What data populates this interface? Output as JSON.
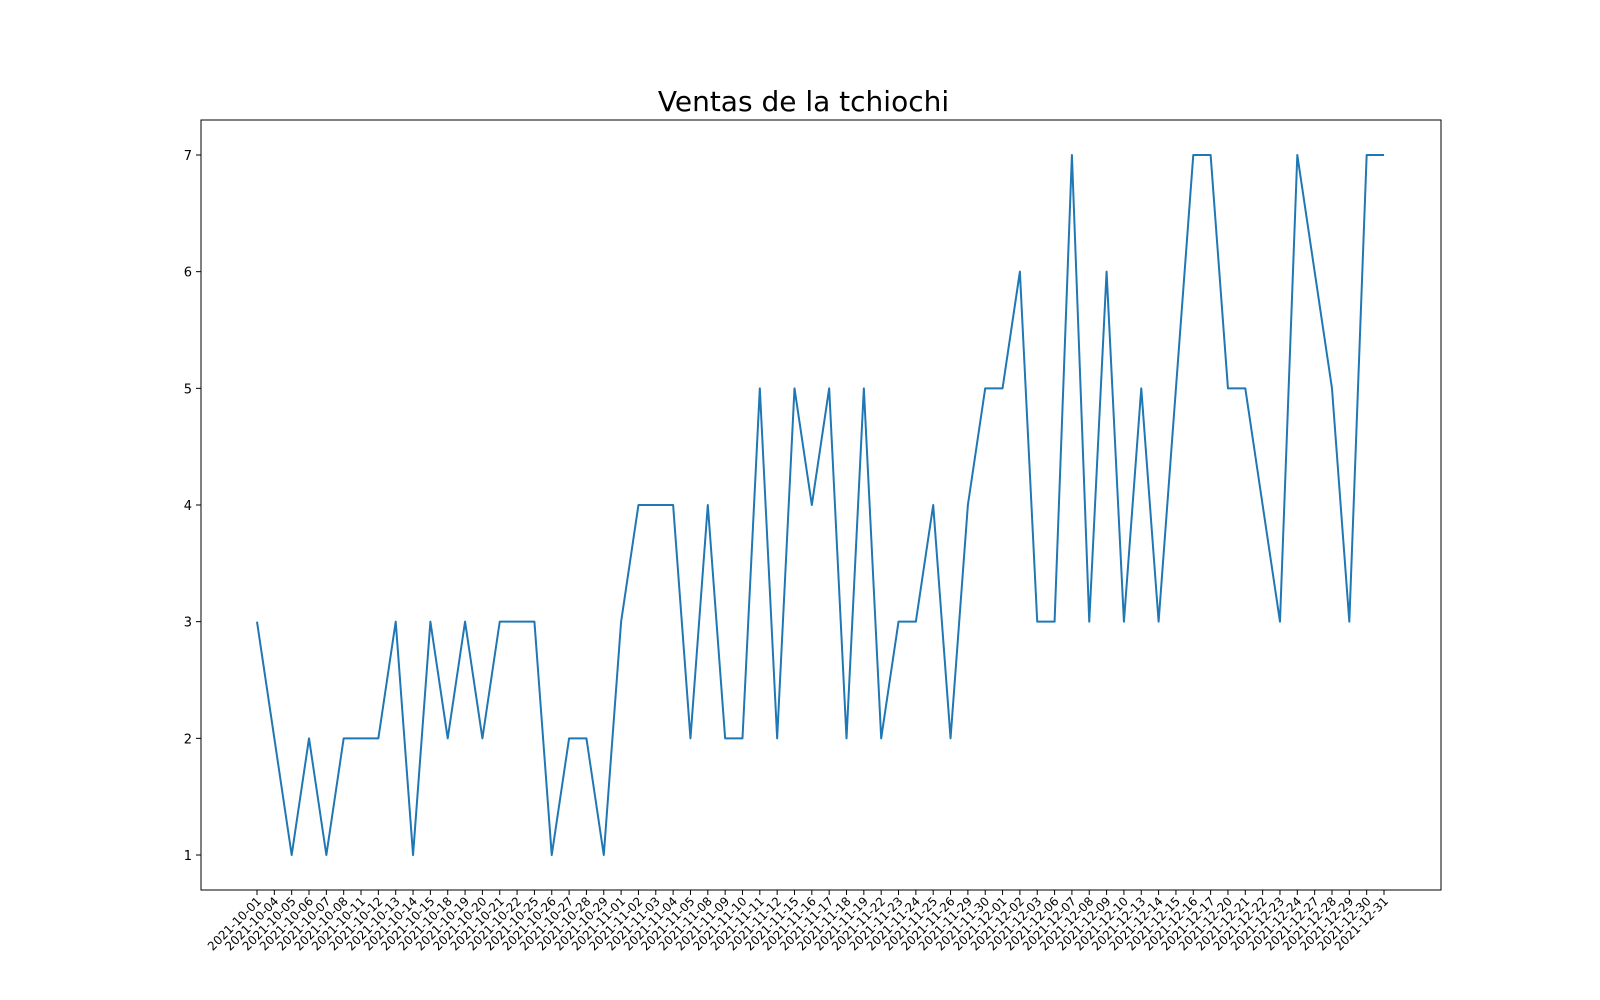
{
  "chart_data": {
    "type": "line",
    "title": "Ventas de la tchiochi",
    "xlabel": "",
    "ylabel": "",
    "ylim": [
      0.7,
      7.3
    ],
    "yticks": [
      1,
      2,
      3,
      4,
      5,
      6,
      7
    ],
    "grid": false,
    "line_color": "#1f77b4",
    "x": [
      "2021-10-01",
      "2021-10-04",
      "2021-10-05",
      "2021-10-06",
      "2021-10-07",
      "2021-10-08",
      "2021-10-11",
      "2021-10-12",
      "2021-10-13",
      "2021-10-14",
      "2021-10-15",
      "2021-10-18",
      "2021-10-19",
      "2021-10-20",
      "2021-10-21",
      "2021-10-22",
      "2021-10-25",
      "2021-10-26",
      "2021-10-27",
      "2021-10-28",
      "2021-10-29",
      "2021-11-01",
      "2021-11-02",
      "2021-11-03",
      "2021-11-04",
      "2021-11-05",
      "2021-11-08",
      "2021-11-09",
      "2021-11-10",
      "2021-11-11",
      "2021-11-12",
      "2021-11-15",
      "2021-11-16",
      "2021-11-17",
      "2021-11-18",
      "2021-11-19",
      "2021-11-22",
      "2021-11-23",
      "2021-11-24",
      "2021-11-25",
      "2021-11-26",
      "2021-11-29",
      "2021-11-30",
      "2021-12-01",
      "2021-12-02",
      "2021-12-03",
      "2021-12-06",
      "2021-12-07",
      "2021-12-08",
      "2021-12-09",
      "2021-12-10",
      "2021-12-13",
      "2021-12-14",
      "2021-12-15",
      "2021-12-16",
      "2021-12-17",
      "2021-12-20",
      "2021-12-21",
      "2021-12-22",
      "2021-12-23",
      "2021-12-24",
      "2021-12-27",
      "2021-12-28",
      "2021-12-29",
      "2021-12-30",
      "2021-12-31"
    ],
    "series": [
      {
        "values": [
          3,
          2,
          1,
          2,
          1,
          2,
          2,
          2,
          3,
          1,
          3,
          2,
          3,
          2,
          3,
          3,
          3,
          1,
          2,
          2,
          1,
          3,
          4,
          4,
          4,
          2,
          4,
          2,
          2,
          5,
          2,
          5,
          4,
          5,
          2,
          5,
          2,
          3,
          3,
          4,
          2,
          4,
          5,
          5,
          6,
          3,
          3,
          7,
          3,
          6,
          3,
          5,
          3,
          5,
          7,
          7,
          5,
          5,
          4,
          3,
          7,
          6,
          5,
          3,
          7,
          7
        ]
      }
    ]
  }
}
